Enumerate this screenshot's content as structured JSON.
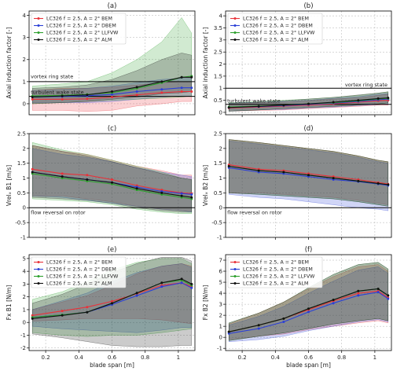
{
  "colors": {
    "BEM": "#e8323a",
    "DBEM": "#2b3fd6",
    "LLFVW": "#2ca02c",
    "ALM": "#111111"
  },
  "legend_entries": [
    {
      "key": "BEM",
      "label": "LC326 f = 2.5, A = 2° BEM"
    },
    {
      "key": "DBEM",
      "label": "LC326 f = 2.5, A = 2° DBEM"
    },
    {
      "key": "LLFVW",
      "label": "LC326 f = 2.5, A = 2° LLFVW"
    },
    {
      "key": "ALM",
      "label": "LC326 f = 2.5, A = 2° ALM"
    }
  ],
  "chart_data": [
    {
      "id": "a",
      "type": "line",
      "title": "(a)",
      "xlabel": "",
      "ylabel": "Axial induction factor [-]",
      "xlim": [
        0.1,
        1.1
      ],
      "ylim": [
        -0.5,
        4.2
      ],
      "xticks": [
        0.2,
        0.4,
        0.6,
        0.8,
        1.0
      ],
      "show_xticklabels": false,
      "yticks": [
        0,
        1,
        2,
        3,
        4
      ],
      "legend": "top-left",
      "hlines": [
        1.0,
        0.333
      ],
      "annotations": [
        {
          "text": "vortex ring state",
          "x": 0.11,
          "y": 1.15
        },
        {
          "text": "turbulent wake state",
          "x": 0.11,
          "y": 0.45
        }
      ],
      "x": [
        0.12,
        0.3,
        0.45,
        0.6,
        0.75,
        0.9,
        1.02,
        1.08
      ],
      "series": [
        {
          "key": "BEM",
          "values": [
            0.2,
            0.2,
            0.22,
            0.3,
            0.4,
            0.5,
            0.55,
            0.55
          ],
          "lo": [
            -0.3,
            -0.3,
            -0.35,
            -0.3,
            -0.1,
            0.0,
            0.1,
            0.1
          ],
          "hi": [
            0.6,
            0.7,
            0.7,
            0.75,
            0.85,
            0.95,
            1.0,
            1.0
          ]
        },
        {
          "key": "DBEM",
          "values": [
            0.3,
            0.33,
            0.36,
            0.42,
            0.55,
            0.65,
            0.72,
            0.72
          ],
          "lo": [
            0.05,
            0.05,
            0.05,
            0.1,
            0.2,
            0.3,
            0.35,
            0.35
          ],
          "hi": [
            0.6,
            0.65,
            0.7,
            0.8,
            0.95,
            1.1,
            1.15,
            1.15
          ]
        },
        {
          "key": "LLFVW",
          "values": [
            0.35,
            0.38,
            0.42,
            0.5,
            0.7,
            0.95,
            1.2,
            1.25
          ],
          "lo": [
            0.0,
            0.05,
            0.1,
            0.15,
            0.2,
            0.25,
            0.3,
            0.35
          ],
          "hi": [
            0.8,
            0.9,
            1.0,
            1.4,
            2.0,
            2.8,
            3.9,
            3.2
          ]
        },
        {
          "key": "ALM",
          "values": [
            0.3,
            0.35,
            0.4,
            0.55,
            0.75,
            1.0,
            1.2,
            1.2
          ],
          "lo": [
            0.0,
            0.05,
            0.1,
            0.2,
            0.3,
            0.45,
            0.5,
            0.55
          ],
          "hi": [
            0.7,
            0.75,
            0.85,
            1.1,
            1.5,
            2.0,
            2.3,
            2.2
          ]
        }
      ]
    },
    {
      "id": "b",
      "type": "line",
      "title": "(b)",
      "xlabel": "",
      "ylabel": "Axial induction factor [-]",
      "xlim": [
        0.1,
        1.1
      ],
      "ylim": [
        -0.1,
        4.2
      ],
      "xticks": [
        0.2,
        0.4,
        0.6,
        0.8,
        1.0
      ],
      "show_xticklabels": false,
      "yticks": [
        0.0,
        0.5,
        1.0,
        1.5,
        2.0,
        2.5,
        3.0,
        3.5,
        4.0
      ],
      "legend": "top-left",
      "hlines": [
        1.0,
        0.333
      ],
      "annotations": [
        {
          "text": "vortex ring state",
          "x": 0.82,
          "y": 1.08
        },
        {
          "text": "turbulent wake state",
          "x": 0.11,
          "y": 0.4
        }
      ],
      "x": [
        0.12,
        0.3,
        0.45,
        0.6,
        0.75,
        0.9,
        1.02,
        1.08
      ],
      "series": [
        {
          "key": "BEM",
          "values": [
            0.18,
            0.22,
            0.26,
            0.3,
            0.35,
            0.42,
            0.48,
            0.5
          ],
          "lo": [
            0.05,
            0.08,
            0.1,
            0.15,
            0.2,
            0.25,
            0.3,
            0.3
          ],
          "hi": [
            0.35,
            0.4,
            0.42,
            0.48,
            0.55,
            0.6,
            0.7,
            0.75
          ]
        },
        {
          "key": "DBEM",
          "values": [
            0.2,
            0.24,
            0.28,
            0.33,
            0.38,
            0.45,
            0.52,
            0.55
          ],
          "lo": [
            0.05,
            0.1,
            0.12,
            0.18,
            0.22,
            0.28,
            0.32,
            0.35
          ],
          "hi": [
            0.38,
            0.42,
            0.45,
            0.5,
            0.58,
            0.65,
            0.75,
            0.78
          ]
        },
        {
          "key": "LLFVW",
          "values": [
            0.22,
            0.26,
            0.3,
            0.35,
            0.4,
            0.48,
            0.55,
            0.58
          ],
          "lo": [
            0.05,
            0.1,
            0.15,
            0.2,
            0.25,
            0.3,
            0.35,
            0.38
          ],
          "hi": [
            0.4,
            0.45,
            0.5,
            0.55,
            0.62,
            0.7,
            0.8,
            0.85
          ]
        },
        {
          "key": "ALM",
          "values": [
            0.2,
            0.25,
            0.3,
            0.35,
            0.42,
            0.5,
            0.57,
            0.6
          ],
          "lo": [
            0.05,
            0.1,
            0.15,
            0.2,
            0.25,
            0.3,
            0.35,
            0.4
          ],
          "hi": [
            0.38,
            0.42,
            0.48,
            0.55,
            0.62,
            0.72,
            0.8,
            0.85
          ]
        }
      ]
    },
    {
      "id": "c",
      "type": "line",
      "title": "(c)",
      "xlabel": "",
      "ylabel": "Vrelₓ B1 [m/s]",
      "xlim": [
        0.1,
        1.1
      ],
      "ylim": [
        -1.0,
        2.5
      ],
      "xticks": [
        0.2,
        0.4,
        0.6,
        0.8,
        1.0
      ],
      "show_xticklabels": false,
      "yticks": [
        -1.0,
        -0.5,
        0.0,
        0.5,
        1.0,
        1.5,
        2.0,
        2.5
      ],
      "legend": "",
      "hlines": [
        0.0
      ],
      "annotations": [
        {
          "text": "flow reversal on rotor",
          "x": 0.11,
          "y": -0.22
        }
      ],
      "x": [
        0.12,
        0.3,
        0.45,
        0.6,
        0.75,
        0.9,
        1.02,
        1.08
      ],
      "series": [
        {
          "key": "BEM",
          "values": [
            1.3,
            1.15,
            1.1,
            0.95,
            0.75,
            0.6,
            0.5,
            0.48
          ],
          "lo": [
            0.4,
            0.4,
            0.3,
            0.2,
            0.05,
            -0.05,
            -0.1,
            -0.1
          ],
          "hi": [
            2.1,
            1.9,
            1.8,
            1.6,
            1.4,
            1.25,
            1.1,
            1.1
          ]
        },
        {
          "key": "DBEM",
          "values": [
            1.2,
            1.05,
            0.95,
            0.85,
            0.7,
            0.55,
            0.48,
            0.45
          ],
          "lo": [
            0.4,
            0.35,
            0.25,
            0.15,
            0.05,
            -0.05,
            -0.1,
            -0.15
          ],
          "hi": [
            2.0,
            1.8,
            1.7,
            1.55,
            1.35,
            1.2,
            1.1,
            1.05
          ]
        },
        {
          "key": "LLFVW",
          "values": [
            1.15,
            1.0,
            0.9,
            0.8,
            0.6,
            0.45,
            0.35,
            0.3
          ],
          "lo": [
            0.3,
            0.25,
            0.2,
            0.1,
            -0.05,
            -0.15,
            -0.2,
            -0.2
          ],
          "hi": [
            2.2,
            1.95,
            1.8,
            1.6,
            1.4,
            1.2,
            1.0,
            0.95
          ]
        },
        {
          "key": "ALM",
          "values": [
            1.2,
            1.05,
            0.95,
            0.85,
            0.65,
            0.5,
            0.4,
            0.35
          ],
          "lo": [
            0.35,
            0.3,
            0.25,
            0.15,
            0.0,
            -0.1,
            -0.15,
            -0.15
          ],
          "hi": [
            2.1,
            1.9,
            1.75,
            1.55,
            1.35,
            1.15,
            1.0,
            0.95
          ]
        }
      ]
    },
    {
      "id": "d",
      "type": "line",
      "title": "(d)",
      "xlabel": "",
      "ylabel": "Vrelₓ B2 [m/s]",
      "xlim": [
        0.1,
        1.1
      ],
      "ylim": [
        -1.0,
        2.5
      ],
      "xticks": [
        0.2,
        0.4,
        0.6,
        0.8,
        1.0
      ],
      "show_xticklabels": false,
      "yticks": [
        -1.0,
        -0.5,
        0.0,
        0.5,
        1.0,
        1.5,
        2.0,
        2.5
      ],
      "legend": "",
      "hlines": [
        0.0
      ],
      "annotations": [
        {
          "text": "flow reversal on rotor",
          "x": 0.11,
          "y": -0.22
        }
      ],
      "x": [
        0.12,
        0.3,
        0.45,
        0.6,
        0.75,
        0.9,
        1.02,
        1.08
      ],
      "series": [
        {
          "key": "BEM",
          "values": [
            1.45,
            1.3,
            1.25,
            1.15,
            1.05,
            0.95,
            0.85,
            0.8
          ],
          "lo": [
            0.5,
            0.5,
            0.45,
            0.4,
            0.35,
            0.25,
            0.15,
            0.1
          ],
          "hi": [
            2.3,
            2.2,
            2.1,
            2.0,
            1.9,
            1.75,
            1.6,
            1.55
          ]
        },
        {
          "key": "DBEM",
          "values": [
            1.35,
            1.2,
            1.15,
            1.05,
            0.95,
            0.88,
            0.8,
            0.75
          ],
          "lo": [
            0.45,
            0.35,
            0.3,
            0.2,
            0.1,
            0.0,
            -0.05,
            -0.1
          ],
          "hi": [
            2.25,
            2.15,
            2.05,
            1.95,
            1.85,
            1.7,
            1.55,
            1.5
          ]
        },
        {
          "key": "LLFVW",
          "values": [
            1.4,
            1.25,
            1.2,
            1.1,
            1.0,
            0.9,
            0.82,
            0.78
          ],
          "lo": [
            0.5,
            0.45,
            0.4,
            0.35,
            0.3,
            0.2,
            0.1,
            0.05
          ],
          "hi": [
            2.3,
            2.2,
            2.1,
            2.0,
            1.9,
            1.75,
            1.6,
            1.55
          ]
        },
        {
          "key": "ALM",
          "values": [
            1.4,
            1.25,
            1.2,
            1.1,
            1.0,
            0.9,
            0.82,
            0.78
          ],
          "lo": [
            0.5,
            0.45,
            0.4,
            0.35,
            0.3,
            0.2,
            0.1,
            0.05
          ],
          "hi": [
            2.3,
            2.2,
            2.1,
            2.0,
            1.9,
            1.75,
            1.6,
            1.55
          ]
        }
      ]
    },
    {
      "id": "e",
      "type": "line",
      "title": "(e)",
      "xlabel": "blade span [m]",
      "ylabel": "Fx B1 [N/m]",
      "xlim": [
        0.1,
        1.1
      ],
      "ylim": [
        -2.2,
        5.3
      ],
      "xticks": [
        0.2,
        0.4,
        0.6,
        0.8,
        1.0
      ],
      "show_xticklabels": true,
      "yticks": [
        -2,
        -1,
        0,
        1,
        2,
        3,
        4,
        5
      ],
      "legend": "top-left",
      "hlines": [],
      "annotations": [],
      "x": [
        0.12,
        0.3,
        0.45,
        0.6,
        0.75,
        0.9,
        1.02,
        1.08
      ],
      "series": [
        {
          "key": "BEM",
          "values": [
            0.55,
            0.9,
            1.2,
            1.65,
            2.25,
            2.9,
            3.1,
            2.8
          ],
          "lo": [
            0.1,
            0.2,
            0.3,
            0.3,
            0.3,
            0.2,
            0.0,
            -0.1
          ],
          "hi": [
            1.0,
            1.6,
            2.1,
            2.9,
            3.8,
            4.4,
            4.6,
            4.4
          ]
        },
        {
          "key": "DBEM",
          "values": [
            0.4,
            0.6,
            0.8,
            1.4,
            2.1,
            2.8,
            3.1,
            2.7
          ],
          "lo": [
            -0.3,
            -0.5,
            -0.6,
            -0.7,
            -0.8,
            -0.6,
            -0.4,
            -0.4
          ],
          "hi": [
            1.0,
            1.7,
            2.3,
            3.2,
            3.9,
            4.4,
            4.6,
            4.3
          ]
        },
        {
          "key": "LLFVW",
          "values": [
            0.4,
            0.6,
            0.8,
            1.5,
            2.3,
            3.1,
            3.3,
            2.9
          ],
          "lo": [
            -0.8,
            -1.0,
            -1.1,
            -1.0,
            -1.0,
            -0.8,
            -0.6,
            -0.5
          ],
          "hi": [
            1.8,
            2.4,
            3.2,
            4.1,
            4.7,
            5.0,
            5.0,
            4.6
          ]
        },
        {
          "key": "ALM",
          "values": [
            0.3,
            0.55,
            0.8,
            1.5,
            2.3,
            3.1,
            3.4,
            3.0
          ],
          "lo": [
            -0.9,
            -1.2,
            -1.5,
            -1.8,
            -1.9,
            -1.9,
            -1.8,
            -1.8
          ],
          "hi": [
            1.5,
            2.2,
            3.0,
            3.9,
            4.6,
            5.1,
            5.1,
            4.8
          ]
        }
      ]
    },
    {
      "id": "f",
      "type": "line",
      "title": "(f)",
      "xlabel": "blade span [m]",
      "ylabel": "Fx B2 [N/m]",
      "xlim": [
        0.1,
        1.1
      ],
      "ylim": [
        -1.2,
        7.5
      ],
      "xticks": [
        0.2,
        0.4,
        0.6,
        0.8,
        1.0
      ],
      "show_xticklabels": true,
      "yticks": [
        -1,
        0,
        1,
        2,
        3,
        4,
        5,
        6,
        7
      ],
      "legend": "top-left",
      "hlines": [],
      "annotations": [],
      "x": [
        0.12,
        0.3,
        0.45,
        0.6,
        0.75,
        0.9,
        1.02,
        1.08
      ],
      "series": [
        {
          "key": "BEM",
          "values": [
            0.5,
            1.1,
            1.7,
            2.5,
            3.3,
            4.0,
            4.2,
            3.6
          ],
          "lo": [
            -0.2,
            0.1,
            0.3,
            0.7,
            1.0,
            1.3,
            1.5,
            1.3
          ],
          "hi": [
            1.2,
            2.2,
            3.2,
            4.4,
            5.5,
            6.4,
            6.6,
            6.0
          ]
        },
        {
          "key": "DBEM",
          "values": [
            0.35,
            0.8,
            1.4,
            2.3,
            3.1,
            3.8,
            4.1,
            3.5
          ],
          "lo": [
            -0.4,
            -0.2,
            0.1,
            0.6,
            1.0,
            1.4,
            1.6,
            1.4
          ],
          "hi": [
            1.1,
            1.9,
            2.8,
            4.0,
            5.1,
            6.1,
            6.4,
            5.8
          ]
        },
        {
          "key": "LLFVW",
          "values": [
            0.5,
            1.1,
            1.7,
            2.6,
            3.4,
            4.2,
            4.4,
            3.8
          ],
          "lo": [
            -0.3,
            0.1,
            0.4,
            0.8,
            1.2,
            1.5,
            1.7,
            1.5
          ],
          "hi": [
            1.3,
            2.2,
            3.2,
            4.5,
            5.7,
            6.6,
            6.8,
            6.2
          ]
        },
        {
          "key": "ALM",
          "values": [
            0.5,
            1.1,
            1.7,
            2.6,
            3.4,
            4.2,
            4.4,
            3.8
          ],
          "lo": [
            -0.3,
            0.1,
            0.4,
            0.8,
            1.2,
            1.5,
            1.7,
            1.5
          ],
          "hi": [
            1.3,
            2.2,
            3.2,
            4.5,
            5.7,
            6.6,
            6.8,
            6.2
          ]
        }
      ]
    }
  ]
}
